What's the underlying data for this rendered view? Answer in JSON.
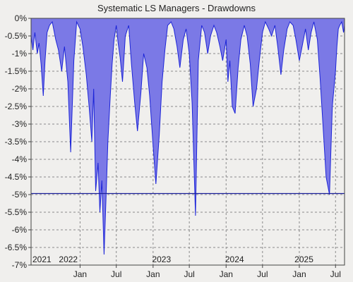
{
  "chart_data": {
    "type": "area",
    "title": "Systematic LS Managers - Drawdowns",
    "xlabel": "",
    "ylabel": "",
    "x_range": [
      "2021-05-01",
      "2025-08-15"
    ],
    "ylim": [
      -7.0,
      0.0
    ],
    "y_ticks": [
      "0%",
      "-0.5%",
      "-1%",
      "-1.5%",
      "-2%",
      "-2.5%",
      "-3%",
      "-3.5%",
      "-4%",
      "-4.5%",
      "-5%",
      "-5.5%",
      "-6%",
      "-6.5%",
      "-7%"
    ],
    "x_tick_labels": [
      {
        "label": "Jan",
        "date": "2022-01-01"
      },
      {
        "label": "Jul",
        "date": "2022-07-01"
      },
      {
        "label": "Jan",
        "date": "2023-01-01"
      },
      {
        "label": "Jul",
        "date": "2023-07-01"
      },
      {
        "label": "Jan",
        "date": "2024-01-01"
      },
      {
        "label": "Jul",
        "date": "2024-07-01"
      },
      {
        "label": "Jan",
        "date": "2025-01-01"
      },
      {
        "label": "Jul",
        "date": "2025-07-01"
      }
    ],
    "year_labels": [
      {
        "label": "2021",
        "date": "2021-05-01"
      },
      {
        "label": "2022",
        "date": "2021-09-10"
      },
      {
        "label": "2023",
        "date": "2022-12-20"
      },
      {
        "label": "2024",
        "date": "2023-12-20"
      },
      {
        "label": "2025",
        "date": "2024-12-01"
      }
    ],
    "reference_line": {
      "y": -4.97
    },
    "grid": true,
    "series": [
      {
        "dates": [
          "2021-05-01",
          "2021-05-10",
          "2021-05-20",
          "2021-06-01",
          "2021-06-10",
          "2021-06-20",
          "2021-07-01",
          "2021-07-10",
          "2021-07-20",
          "2021-08-01",
          "2021-08-15",
          "2021-09-01",
          "2021-09-15",
          "2021-10-01",
          "2021-10-15",
          "2021-11-01",
          "2021-11-15",
          "2021-12-01",
          "2021-12-15",
          "2022-01-01",
          "2022-01-15",
          "2022-02-01",
          "2022-02-15",
          "2022-03-01",
          "2022-03-10",
          "2022-03-20",
          "2022-04-01",
          "2022-04-10",
          "2022-04-20",
          "2022-05-01",
          "2022-05-10",
          "2022-05-20",
          "2022-06-01",
          "2022-06-10",
          "2022-06-20",
          "2022-07-01",
          "2022-07-10",
          "2022-07-20",
          "2022-08-01",
          "2022-08-15",
          "2022-09-01",
          "2022-09-15",
          "2022-10-01",
          "2022-10-15",
          "2022-11-01",
          "2022-11-15",
          "2022-12-01",
          "2022-12-15",
          "2023-01-01",
          "2023-01-15",
          "2023-02-01",
          "2023-02-15",
          "2023-03-01",
          "2023-03-15",
          "2023-04-01",
          "2023-04-15",
          "2023-05-01",
          "2023-05-15",
          "2023-06-01",
          "2023-06-15",
          "2023-07-01",
          "2023-07-15",
          "2023-08-01",
          "2023-08-15",
          "2023-09-01",
          "2023-09-15",
          "2023-10-01",
          "2023-10-15",
          "2023-11-01",
          "2023-11-15",
          "2023-12-01",
          "2023-12-15",
          "2024-01-01",
          "2024-01-10",
          "2024-01-20",
          "2024-02-01",
          "2024-02-15",
          "2024-03-01",
          "2024-03-15",
          "2024-04-01",
          "2024-04-15",
          "2024-05-01",
          "2024-05-15",
          "2024-06-01",
          "2024-06-15",
          "2024-07-01",
          "2024-07-15",
          "2024-08-01",
          "2024-08-15",
          "2024-09-01",
          "2024-09-15",
          "2024-10-01",
          "2024-10-15",
          "2024-11-01",
          "2024-11-15",
          "2024-12-01",
          "2024-12-15",
          "2025-01-01",
          "2025-01-15",
          "2025-02-01",
          "2025-02-15",
          "2025-03-01",
          "2025-03-15",
          "2025-04-01",
          "2025-04-15",
          "2025-05-01",
          "2025-05-15",
          "2025-06-01",
          "2025-06-15",
          "2025-07-01",
          "2025-07-08",
          "2025-07-15",
          "2025-07-22",
          "2025-08-01",
          "2025-08-10",
          "2025-08-15"
        ],
        "values": [
          -0.5,
          -0.9,
          -0.4,
          -1.0,
          -0.7,
          -1.3,
          -2.2,
          -1.2,
          -0.4,
          -0.2,
          -0.1,
          -0.6,
          -0.9,
          -1.5,
          -0.8,
          -1.8,
          -3.8,
          -1.2,
          -0.1,
          -0.3,
          -0.8,
          -1.6,
          -2.5,
          -3.5,
          -2.0,
          -4.9,
          -4.1,
          -5.5,
          -4.6,
          -6.7,
          -5.2,
          -3.5,
          -2.2,
          -1.3,
          -0.6,
          -0.2,
          -0.7,
          -1.1,
          -1.8,
          -0.5,
          -0.2,
          -1.3,
          -2.4,
          -3.2,
          -2.1,
          -1.0,
          -1.4,
          -2.2,
          -3.6,
          -4.7,
          -3.3,
          -1.8,
          -0.9,
          -0.2,
          -0.1,
          -0.3,
          -0.8,
          -1.4,
          -0.6,
          -0.3,
          -1.0,
          -2.4,
          -5.6,
          -1.2,
          -0.2,
          -0.4,
          -1.0,
          -0.5,
          -0.2,
          -0.4,
          -0.8,
          -1.2,
          -0.6,
          -1.8,
          -1.2,
          -2.5,
          -2.7,
          -1.4,
          -0.6,
          -0.2,
          -0.5,
          -1.3,
          -2.5,
          -2.0,
          -1.2,
          -0.4,
          -0.1,
          -0.3,
          -0.5,
          -0.2,
          -0.8,
          -1.6,
          -0.9,
          -0.3,
          -0.1,
          -0.2,
          -0.6,
          -1.2,
          -0.8,
          -0.3,
          -0.9,
          -0.4,
          -0.1,
          -0.6,
          -1.7,
          -3.2,
          -4.5,
          -5.0,
          -2.5,
          -1.5,
          -0.8,
          -0.3,
          -0.2,
          -0.1,
          -0.4,
          -0.2
        ]
      }
    ]
  },
  "colors": {
    "fill": "#7b79e6",
    "line": "#1c24d8",
    "frame": "#444444",
    "grid": "#8a8a8a",
    "background": "#f0efed"
  }
}
